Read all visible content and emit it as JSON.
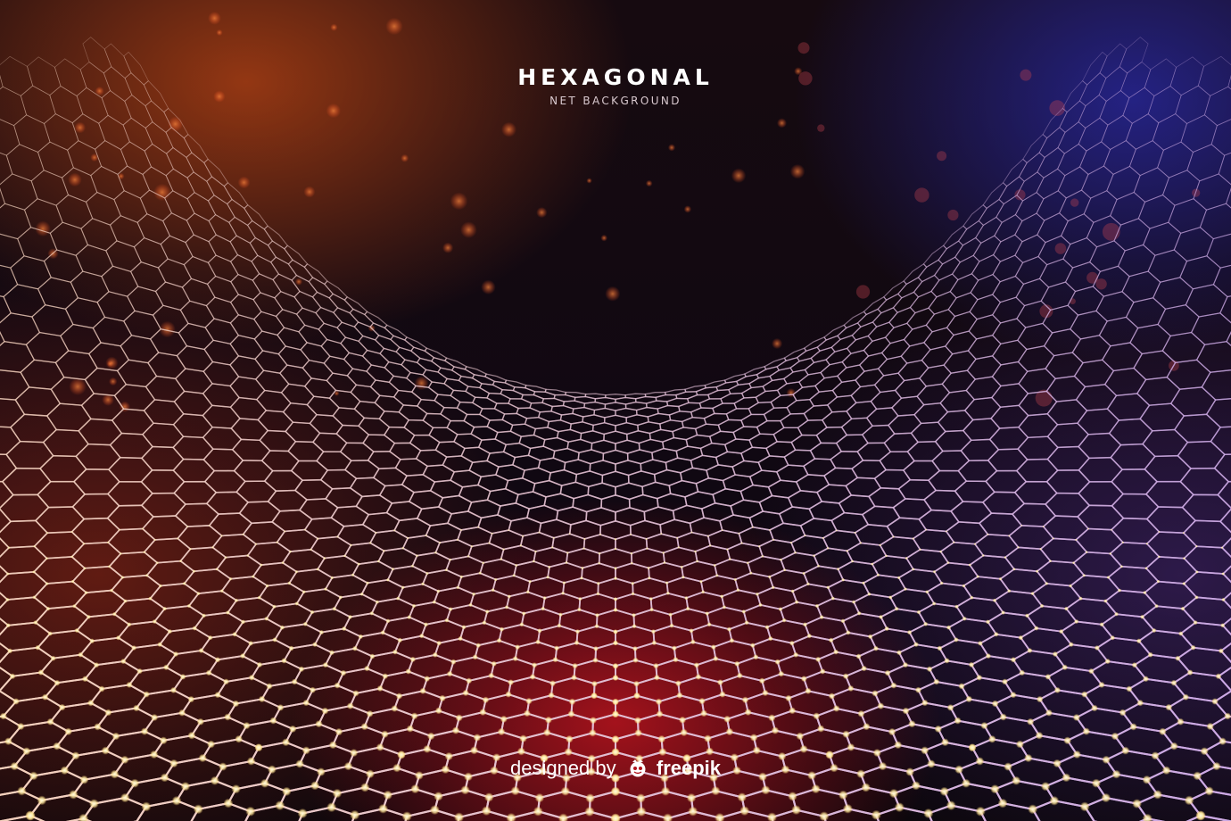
{
  "title": "HEXAGONAL",
  "subtitle": "NET BACKGROUND",
  "credit": {
    "prefix": "designed by",
    "brand": "freepik",
    "logo_icon": "freepik-logo-icon"
  },
  "colors": {
    "warm_glow": "#c0461a",
    "cool_glow": "#2a2aa0",
    "center_glow": "#be141e",
    "net_line": "#f2d6cf",
    "node_light": "#fff6c8",
    "text": "#ffffff"
  }
}
